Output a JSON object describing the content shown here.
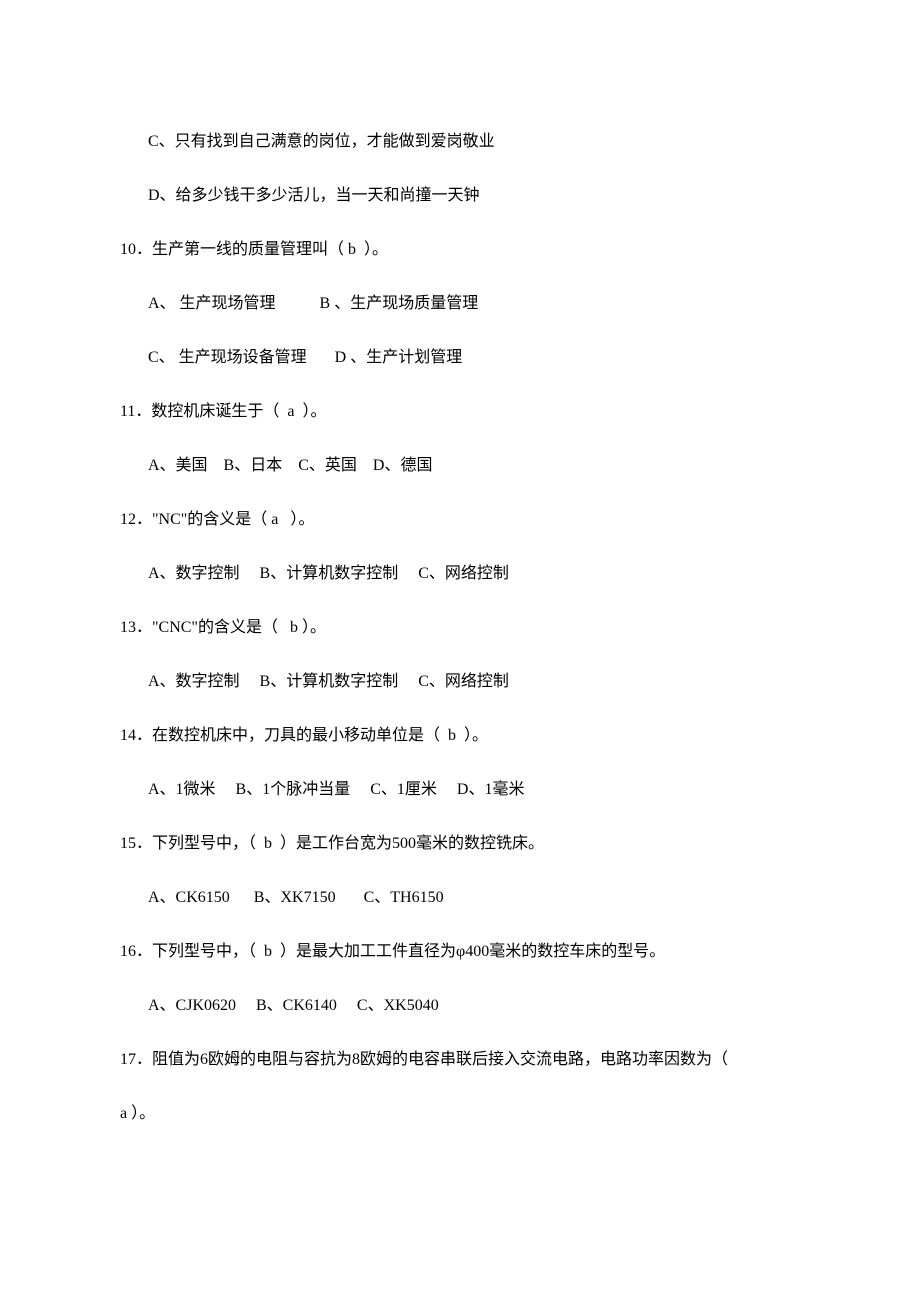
{
  "font": {
    "family": "SimSun",
    "size_pt": 12,
    "color": "#000000"
  },
  "background_color": "#ffffff",
  "lines": [
    {
      "indent": true,
      "text": "C、只有找到自己满意的岗位，才能做到爱岗敬业"
    },
    {
      "indent": true,
      "text": "D、给多少钱干多少活儿，当一天和尚撞一天钟"
    },
    {
      "indent": false,
      "text": "10．生产第一线的质量管理叫（ b  ）。"
    },
    {
      "indent": true,
      "text": "A、 生产现场管理           B 、生产现场质量管理"
    },
    {
      "indent": true,
      "text": "C、 生产现场设备管理       D 、生产计划管理"
    },
    {
      "indent": false,
      "text": "11．数控机床诞生于（  a  ）。"
    },
    {
      "indent": true,
      "text": "A、美国    B、日本    C、英国    D、德国"
    },
    {
      "indent": false,
      "text": "12．\"NC\"的含义是（ a   ）。"
    },
    {
      "indent": true,
      "text": "A、数字控制     B、计算机数字控制     C、网络控制"
    },
    {
      "indent": false,
      "text": "13．\"CNC\"的含义是（   b ）。"
    },
    {
      "indent": true,
      "text": "A、数字控制     B、计算机数字控制     C、网络控制"
    },
    {
      "indent": false,
      "text": "14．在数控机床中，刀具的最小移动单位是（  b  ）。"
    },
    {
      "indent": true,
      "text": "A、1微米     B、1个脉冲当量     C、1厘米     D、1毫米"
    },
    {
      "indent": false,
      "text": "15．下列型号中，（  b  ）是工作台宽为500毫米的数控铣床。"
    },
    {
      "indent": true,
      "text": "A、CK6150      B、XK7150       C、TH6150"
    },
    {
      "indent": false,
      "text": "16．下列型号中，（  b  ）是最大加工工件直径为φ400毫米的数控车床的型号。"
    },
    {
      "indent": true,
      "text": "A、CJK0620     B、CK6140     C、XK5040"
    },
    {
      "indent": false,
      "text": "17．阻值为6欧姆的电阻与容抗为8欧姆的电容串联后接入交流电路，电路功率因数为（  "
    },
    {
      "indent": false,
      "text": "a ）。"
    }
  ]
}
